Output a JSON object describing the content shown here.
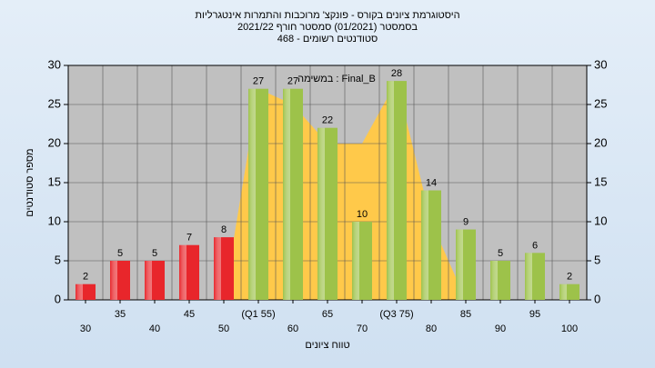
{
  "chart_data": {
    "type": "bar",
    "title": "היסטוגרמת ציונים בקורס - פונקצ' מרוכבות והתמרות אינטגרליות",
    "subtitle": "בסמסטר (01/2021) סמסטר חורף 2021/22",
    "subtitle2": "סטודנטים רשומים - 468",
    "y_label": "מספר סטודנטים",
    "x_label": "טווח ציונים",
    "categories": [
      "30",
      "35",
      "40",
      "45",
      "50",
      "(Q1 55)",
      "60",
      "65",
      "70",
      "(Q3 75)",
      "80",
      "85",
      "90",
      "95",
      "100"
    ],
    "values": [
      2,
      5,
      5,
      7,
      8,
      27,
      27,
      22,
      10,
      28,
      14,
      9,
      5,
      6,
      2
    ],
    "bar_colors": [
      "#e8262b",
      "#e8262b",
      "#e8262b",
      "#e8262b",
      "#e8262b",
      "#9dc24a",
      "#9dc24a",
      "#9dc24a",
      "#9dc24a",
      "#9dc24a",
      "#9dc24a",
      "#9dc24a",
      "#9dc24a",
      "#9dc24a",
      "#9dc24a"
    ],
    "series": [
      {
        "name": "במשימה : Final_B",
        "color": "#ffc94a",
        "values": [
          0,
          0,
          0,
          0,
          0,
          27,
          25,
          20,
          20,
          28,
          10,
          0,
          0,
          0,
          0
        ]
      }
    ],
    "ylim": [
      0,
      30
    ],
    "yticks": [
      0,
      5,
      10,
      15,
      20,
      25,
      30
    ],
    "grid": true
  }
}
